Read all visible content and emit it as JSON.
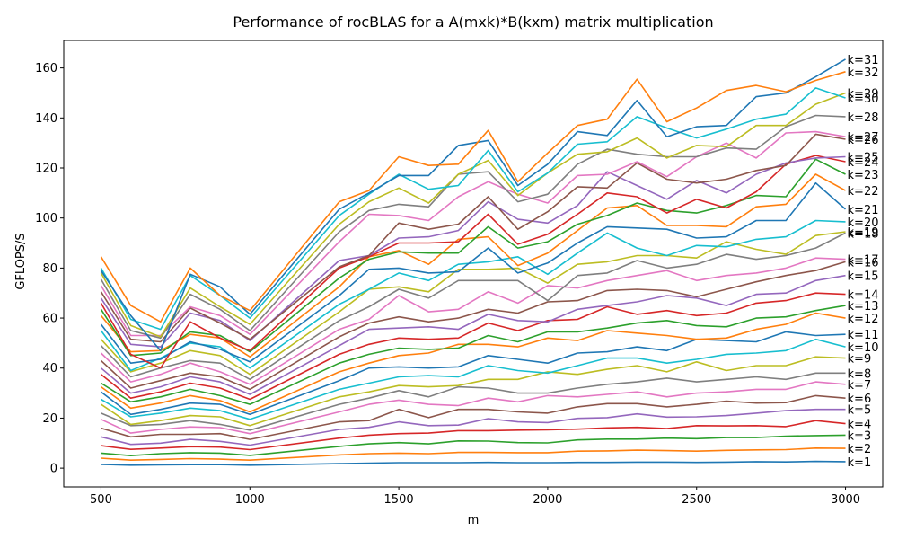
{
  "chart_data": {
    "type": "line",
    "title": "Performance of rocBLAS for a A(mxk)*B(kxm) matrix multiplication",
    "xlabel": "m",
    "ylabel": "GFLOPS/S",
    "xlim": [
      375,
      3125
    ],
    "ylim": [
      -7.5,
      171
    ],
    "xticks": [
      "500",
      "1000",
      "1500",
      "2000",
      "2500",
      "3000"
    ],
    "yticks": [
      "0",
      "20",
      "40",
      "60",
      "80",
      "100",
      "120",
      "140",
      "160"
    ],
    "grid": false,
    "legend": "none (series labeled at line ends on the right)",
    "x": [
      500,
      600,
      700,
      800,
      900,
      1000,
      1300,
      1400,
      1500,
      1600,
      1700,
      1800,
      1900,
      2000,
      2100,
      2200,
      2300,
      2400,
      2500,
      2600,
      2700,
      2800,
      2900,
      3000
    ],
    "series": [
      {
        "name": "k=1",
        "color": "#1f77b4",
        "values": [
          1.5,
          1.2,
          1.3,
          1.4,
          1.4,
          1.2,
          1.8,
          2.0,
          2.2,
          2.2,
          2.2,
          2.3,
          2.2,
          2.2,
          2.3,
          2.3,
          2.4,
          2.4,
          2.3,
          2.4,
          2.6,
          2.5,
          2.7,
          2.6
        ]
      },
      {
        "name": "k=2",
        "color": "#ff7f0e",
        "values": [
          4.0,
          3.2,
          3.5,
          3.8,
          3.6,
          3.2,
          5.3,
          5.8,
          6.0,
          5.8,
          6.3,
          6.3,
          6.2,
          6.2,
          6.8,
          6.9,
          7.2,
          7.0,
          6.8,
          7.1,
          7.3,
          7.4,
          8.0,
          7.9
        ]
      },
      {
        "name": "k=3",
        "color": "#2ca02c",
        "values": [
          6.0,
          5.0,
          5.8,
          6.2,
          6.0,
          5.1,
          8.7,
          9.7,
          10.2,
          9.7,
          10.9,
          10.8,
          10.2,
          10.1,
          11.3,
          11.6,
          11.6,
          12.0,
          11.8,
          12.2,
          12.2,
          12.8,
          13.0,
          13.2
        ]
      },
      {
        "name": "k=4",
        "color": "#d62728",
        "values": [
          9.0,
          7.5,
          8.0,
          8.6,
          8.4,
          7.4,
          12.0,
          13.2,
          13.8,
          14.0,
          15.0,
          15.0,
          15.2,
          15.3,
          15.6,
          16.1,
          16.3,
          15.8,
          17.0,
          16.9,
          17.0,
          16.6,
          19.0,
          17.8
        ]
      },
      {
        "name": "k=5",
        "color": "#9467bd",
        "values": [
          12.5,
          9.5,
          10.0,
          11.5,
          10.7,
          9.2,
          15.5,
          16.3,
          18.5,
          17.0,
          17.2,
          19.8,
          18.5,
          18.2,
          19.9,
          20.2,
          21.7,
          20.4,
          20.5,
          21.0,
          22.0,
          23.0,
          23.5,
          23.5
        ]
      },
      {
        "name": "k=6",
        "color": "#8c564b",
        "values": [
          16.0,
          12.5,
          13.5,
          13.5,
          13.8,
          11.5,
          18.5,
          19.0,
          23.5,
          20.2,
          23.5,
          23.5,
          22.5,
          22.0,
          24.5,
          25.8,
          25.8,
          24.5,
          25.5,
          26.8,
          26.0,
          26.2,
          29.0,
          28.0
        ]
      },
      {
        "name": "k=7",
        "color": "#e377c2",
        "values": [
          19.5,
          14.0,
          15.5,
          16.5,
          16.2,
          13.8,
          22.5,
          25.5,
          27.2,
          25.5,
          25.0,
          28.0,
          26.5,
          29.0,
          28.5,
          29.5,
          30.5,
          28.5,
          30.0,
          30.5,
          31.5,
          31.5,
          34.5,
          33.5
        ]
      },
      {
        "name": "k=8",
        "color": "#7f7f7f",
        "values": [
          22.0,
          17.0,
          17.5,
          19.0,
          17.5,
          15.2,
          25.5,
          28.0,
          31.0,
          28.5,
          32.5,
          32.0,
          30.0,
          30.0,
          32.0,
          33.5,
          34.5,
          36.0,
          34.5,
          35.5,
          36.5,
          35.5,
          38.0,
          38.0
        ]
      },
      {
        "name": "k=9",
        "color": "#bcbd22",
        "values": [
          25.5,
          17.5,
          19.0,
          21.0,
          20.5,
          17.0,
          28.5,
          30.5,
          33.0,
          32.5,
          33.0,
          35.5,
          35.5,
          38.5,
          37.5,
          39.5,
          41.0,
          38.5,
          42.5,
          39.0,
          41.0,
          41.0,
          44.5,
          44.0
        ]
      },
      {
        "name": "k=10",
        "color": "#17becf",
        "values": [
          27.5,
          20.5,
          22.0,
          24.0,
          23.0,
          19.5,
          31.5,
          34.0,
          36.5,
          37.0,
          36.5,
          41.0,
          39.0,
          38.0,
          41.0,
          44.0,
          44.0,
          42.0,
          43.5,
          45.5,
          46.0,
          47.0,
          51.5,
          48.5
        ]
      },
      {
        "name": "k=11",
        "color": "#1f77b4",
        "values": [
          30.5,
          21.5,
          23.5,
          26.0,
          25.5,
          21.5,
          35.0,
          40.0,
          40.5,
          40.0,
          40.5,
          45.0,
          43.5,
          42.0,
          46.0,
          46.5,
          48.5,
          47.0,
          51.5,
          51.0,
          50.5,
          54.5,
          53.0,
          53.5
        ]
      },
      {
        "name": "k=12",
        "color": "#ff7f0e",
        "values": [
          32.5,
          24.0,
          26.0,
          29.0,
          27.0,
          22.5,
          38.5,
          42.0,
          45.0,
          46.0,
          49.5,
          49.5,
          48.5,
          52.0,
          51.0,
          55.0,
          54.0,
          53.0,
          51.5,
          52.0,
          55.5,
          57.5,
          62.0,
          60.0
        ]
      },
      {
        "name": "k=13",
        "color": "#2ca02c",
        "values": [
          34.0,
          26.5,
          28.5,
          31.5,
          29.0,
          25.5,
          42.0,
          45.5,
          48.0,
          47.5,
          48.0,
          53.0,
          50.5,
          54.5,
          54.5,
          56.0,
          58.0,
          59.0,
          57.0,
          56.5,
          60.0,
          60.5,
          63.0,
          65.0
        ]
      },
      {
        "name": "k=14",
        "color": "#d62728",
        "values": [
          37.5,
          28.0,
          30.5,
          34.0,
          32.0,
          27.5,
          45.5,
          49.5,
          52.0,
          51.5,
          52.0,
          58.0,
          55.0,
          59.0,
          59.5,
          64.5,
          61.5,
          63.0,
          61.0,
          62.0,
          66.0,
          67.0,
          70.0,
          69.5
        ]
      },
      {
        "name": "k=15",
        "color": "#9467bd",
        "values": [
          40.0,
          30.0,
          32.5,
          36.5,
          34.5,
          29.5,
          49.0,
          55.5,
          56.0,
          56.5,
          55.5,
          61.5,
          59.0,
          58.5,
          63.5,
          65.0,
          66.5,
          69.0,
          68.0,
          65.0,
          69.5,
          70.0,
          75.0,
          77.0
        ]
      },
      {
        "name": "k=16",
        "color": "#8c564b",
        "values": [
          43.0,
          32.0,
          35.0,
          38.0,
          36.5,
          31.5,
          52.5,
          58.0,
          60.5,
          58.5,
          60.0,
          63.5,
          62.0,
          66.5,
          67.0,
          71.0,
          71.5,
          71.0,
          68.5,
          71.5,
          74.5,
          77.0,
          79.0,
          82.5
        ]
      },
      {
        "name": "k=17",
        "color": "#e377c2",
        "values": [
          46.0,
          34.5,
          37.5,
          42.0,
          38.5,
          33.5,
          55.5,
          59.5,
          69.0,
          62.5,
          63.5,
          70.5,
          66.0,
          73.0,
          72.0,
          75.0,
          77.0,
          79.0,
          75.0,
          77.0,
          78.0,
          80.0,
          84.0,
          83.5
        ]
      },
      {
        "name": "k=18",
        "color": "#7f7f7f",
        "values": [
          49.0,
          36.5,
          40.0,
          43.0,
          42.0,
          35.5,
          59.0,
          64.5,
          71.5,
          68.0,
          75.0,
          75.0,
          75.0,
          67.0,
          77.0,
          78.0,
          83.0,
          80.0,
          81.5,
          85.5,
          83.5,
          85.0,
          88.0,
          94.0
        ]
      },
      {
        "name": "k=19",
        "color": "#bcbd22",
        "values": [
          51.5,
          38.5,
          42.0,
          47.0,
          45.0,
          37.5,
          62.5,
          71.5,
          72.5,
          70.5,
          79.5,
          79.5,
          80.0,
          74.0,
          81.5,
          82.5,
          85.0,
          85.0,
          84.0,
          90.5,
          87.5,
          85.5,
          93.0,
          94.5
        ]
      },
      {
        "name": "k=20",
        "color": "#17becf",
        "values": [
          55.0,
          39.0,
          44.0,
          50.0,
          48.5,
          40.0,
          65.5,
          71.5,
          78.0,
          75.0,
          81.5,
          82.5,
          84.5,
          77.5,
          86.0,
          94.0,
          88.0,
          85.0,
          89.0,
          88.5,
          91.5,
          92.5,
          99.0,
          98.5
        ]
      },
      {
        "name": "k=21",
        "color": "#1f77b4",
        "values": [
          57.5,
          42.0,
          43.5,
          50.5,
          47.5,
          42.5,
          69.0,
          79.5,
          80.0,
          78.0,
          78.5,
          88.0,
          78.0,
          82.0,
          90.0,
          96.5,
          96.0,
          95.5,
          92.0,
          92.5,
          99.0,
          99.0,
          114.0,
          103.5
        ]
      },
      {
        "name": "k=22",
        "color": "#ff7f0e",
        "values": [
          61.0,
          46.5,
          47.0,
          53.5,
          52.0,
          44.5,
          72.5,
          84.5,
          87.0,
          81.5,
          91.5,
          92.5,
          81.0,
          86.0,
          95.0,
          104.0,
          105.0,
          97.0,
          97.0,
          96.5,
          104.5,
          105.5,
          117.5,
          111.0
        ]
      },
      {
        "name": "k=23",
        "color": "#2ca02c",
        "values": [
          63.5,
          45.0,
          46.0,
          54.5,
          53.0,
          46.5,
          76.0,
          83.5,
          86.5,
          86.0,
          86.0,
          96.5,
          88.0,
          90.5,
          97.5,
          101.0,
          106.0,
          103.0,
          102.0,
          105.0,
          109.0,
          108.5,
          123.5,
          117.5
        ]
      },
      {
        "name": "k=24",
        "color": "#d62728",
        "values": [
          66.0,
          45.5,
          40.0,
          58.5,
          52.0,
          47.0,
          80.0,
          84.5,
          90.0,
          90.0,
          90.5,
          101.5,
          89.5,
          93.5,
          101.5,
          110.0,
          108.5,
          102.0,
          107.5,
          104.0,
          110.5,
          121.5,
          125.0,
          122.5
        ]
      },
      {
        "name": "k=25",
        "color": "#9467bd",
        "values": [
          68.0,
          49.5,
          48.5,
          62.0,
          59.0,
          51.0,
          83.0,
          85.0,
          92.0,
          92.5,
          95.0,
          106.5,
          99.5,
          98.0,
          105.0,
          118.5,
          113.0,
          107.5,
          115.0,
          110.0,
          117.5,
          122.0,
          124.0,
          124.5
        ]
      },
      {
        "name": "k=26",
        "color": "#8c564b",
        "values": [
          70.5,
          51.5,
          50.5,
          64.0,
          58.0,
          51.5,
          80.5,
          85.0,
          98.0,
          95.5,
          97.5,
          108.5,
          95.5,
          102.5,
          112.5,
          112.0,
          122.0,
          115.5,
          114.0,
          115.5,
          119.0,
          121.0,
          133.5,
          131.5
        ]
      },
      {
        "name": "k=27",
        "color": "#e377c2",
        "values": [
          73.0,
          53.0,
          53.0,
          64.5,
          61.0,
          53.5,
          90.5,
          101.5,
          101.0,
          99.0,
          108.5,
          114.5,
          109.5,
          106.0,
          117.0,
          117.5,
          122.5,
          116.5,
          124.5,
          130.0,
          124.0,
          134.0,
          134.5,
          132.5
        ]
      },
      {
        "name": "k=28",
        "color": "#7f7f7f",
        "values": [
          75.5,
          55.0,
          52.0,
          69.5,
          63.5,
          55.0,
          94.5,
          103.0,
          105.5,
          104.5,
          117.5,
          118.5,
          106.5,
          109.5,
          121.5,
          127.5,
          125.5,
          124.5,
          124.5,
          128.0,
          127.5,
          136.5,
          141.0,
          140.5
        ]
      },
      {
        "name": "k=29",
        "color": "#bcbd22",
        "values": [
          78.0,
          57.0,
          52.5,
          72.0,
          64.5,
          57.5,
          97.5,
          106.5,
          112.0,
          106.0,
          117.5,
          123.0,
          109.0,
          118.0,
          125.5,
          126.5,
          132.0,
          124.0,
          129.0,
          128.5,
          137.0,
          137.0,
          145.5,
          150.0
        ]
      },
      {
        "name": "k=30",
        "color": "#17becf",
        "values": [
          80.0,
          59.5,
          55.5,
          77.0,
          69.0,
          60.0,
          101.0,
          109.5,
          117.5,
          111.5,
          113.0,
          127.0,
          110.5,
          118.0,
          129.5,
          130.5,
          140.5,
          136.0,
          132.0,
          135.5,
          139.5,
          141.5,
          152.0,
          148.0
        ]
      },
      {
        "name": "k=31",
        "color": "#1f77b4",
        "values": [
          79.0,
          61.0,
          47.0,
          77.5,
          72.5,
          61.5,
          103.5,
          110.0,
          117.0,
          117.0,
          129.0,
          131.0,
          113.0,
          121.5,
          134.5,
          133.0,
          147.0,
          132.5,
          136.5,
          137.0,
          148.5,
          150.0,
          156.5,
          163.5
        ]
      },
      {
        "name": "k=32",
        "color": "#ff7f0e",
        "values": [
          84.5,
          65.0,
          58.5,
          80.0,
          69.0,
          63.0,
          106.5,
          111.0,
          124.5,
          121.0,
          121.5,
          135.0,
          114.5,
          126.0,
          137.0,
          139.5,
          155.5,
          138.5,
          144.0,
          151.0,
          153.0,
          150.5,
          155.0,
          158.5
        ]
      }
    ]
  }
}
